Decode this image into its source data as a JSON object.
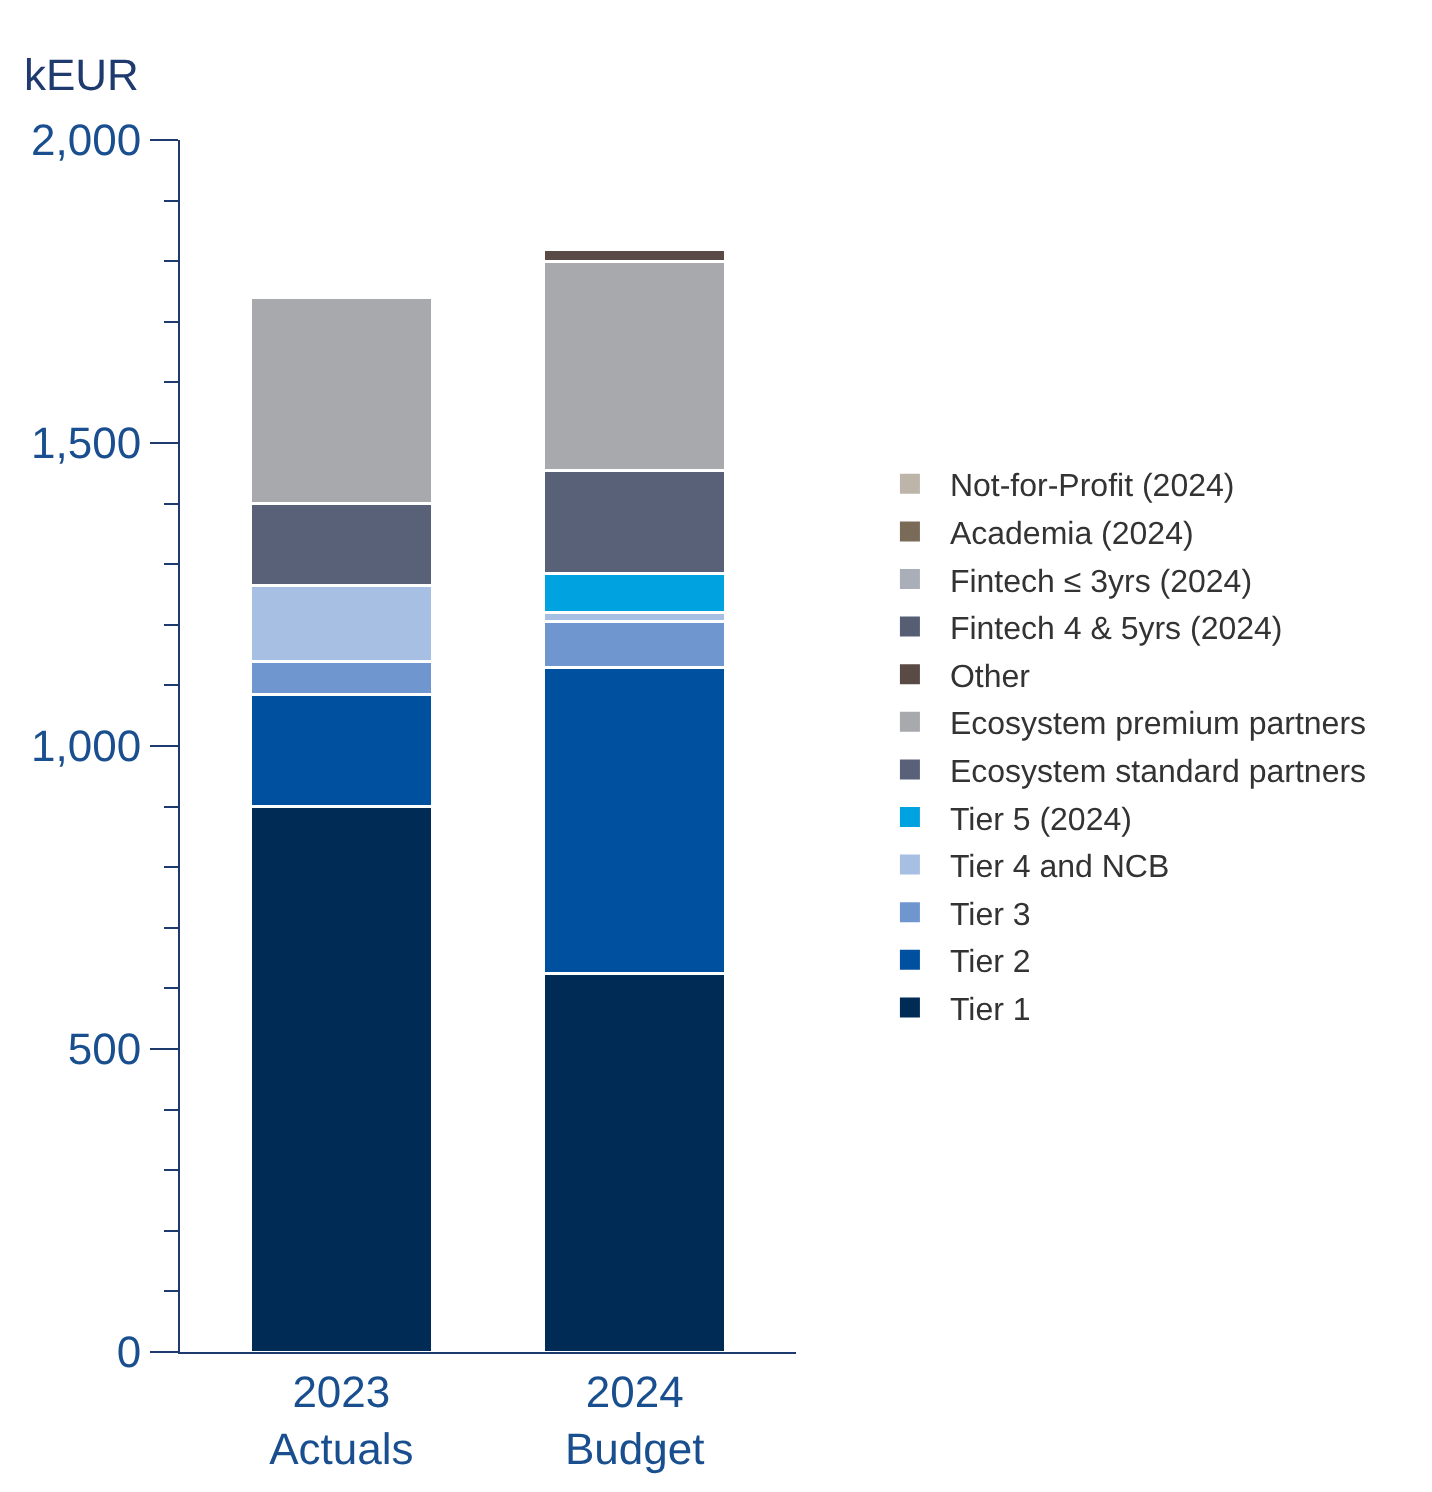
{
  "chart_data": {
    "type": "bar",
    "stacked": true,
    "ylabel": "kEUR",
    "categories": [
      "2023\nActuals",
      "2024\nBudget"
    ],
    "ylim": [
      0,
      2000
    ],
    "yticks": [
      {
        "value": 0,
        "label": "0"
      },
      {
        "value": 500,
        "label": "500"
      },
      {
        "value": 1000,
        "label": "1,000"
      },
      {
        "value": 1500,
        "label": "1,500"
      },
      {
        "value": 2000,
        "label": "2,000"
      }
    ],
    "legend": "right",
    "series": [
      {
        "name": "Tier 1",
        "color": "#002b54",
        "values": [
          900,
          625
        ]
      },
      {
        "name": "Tier 2",
        "color": "#0050a0",
        "values": [
          185,
          505
        ]
      },
      {
        "name": "Tier 3",
        "color": "#7096cf",
        "values": [
          55,
          75
        ]
      },
      {
        "name": "Tier 4 and NCB",
        "color": "#a6bfe3",
        "values": [
          125,
          15
        ]
      },
      {
        "name": "Tier 5 (2024)",
        "color": "#00a3e0",
        "values": [
          null,
          65
        ]
      },
      {
        "name": "Ecosystem standard partners",
        "color": "#596178",
        "values": [
          135,
          170
        ]
      },
      {
        "name": "Ecosystem premium partners",
        "color": "#a7a9ac",
        "values": [
          340,
          345
        ]
      },
      {
        "name": "Other",
        "color": "#5a4a45",
        "values": [
          null,
          20
        ]
      },
      {
        "name": "Fintech 4 & 5yrs (2024)",
        "color": "#565e73",
        "values": [
          null,
          null
        ]
      },
      {
        "name": "Fintech ≤ 3yrs (2024)",
        "color": "#a9aeb9",
        "values": [
          null,
          null
        ]
      },
      {
        "name": "Academia (2024)",
        "color": "#7a6a58",
        "values": [
          null,
          null
        ]
      },
      {
        "name": "Not-for-Profit (2024)",
        "color": "#bdb5aa",
        "values": [
          null,
          null
        ]
      }
    ]
  }
}
